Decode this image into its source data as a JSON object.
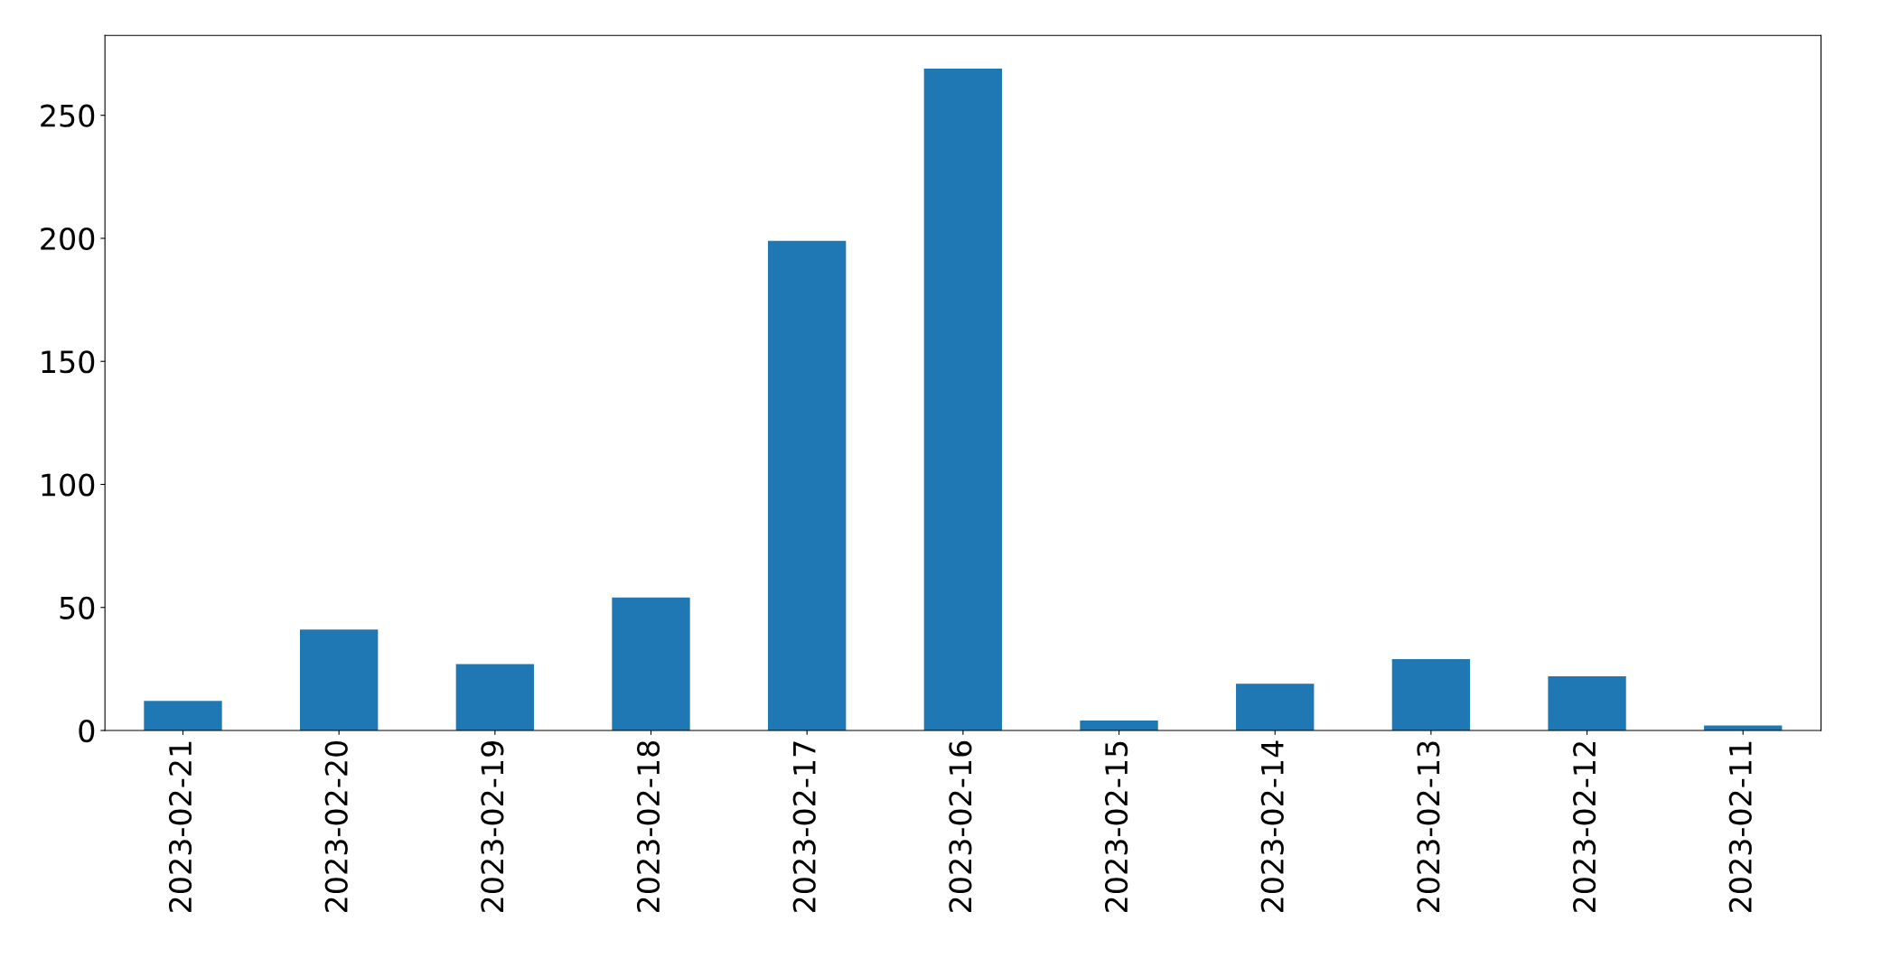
{
  "chart_data": {
    "type": "bar",
    "categories": [
      "2023-02-21",
      "2023-02-20",
      "2023-02-19",
      "2023-02-18",
      "2023-02-17",
      "2023-02-16",
      "2023-02-15",
      "2023-02-14",
      "2023-02-13",
      "2023-02-12",
      "2023-02-11"
    ],
    "values": [
      12,
      41,
      27,
      54,
      199,
      269,
      4,
      19,
      29,
      22,
      2
    ],
    "color": "#1f77b4",
    "ylim": [
      0,
      282.45
    ],
    "yticks": [
      0,
      50,
      100,
      150,
      200,
      250
    ],
    "grid": false,
    "legend": false
  }
}
